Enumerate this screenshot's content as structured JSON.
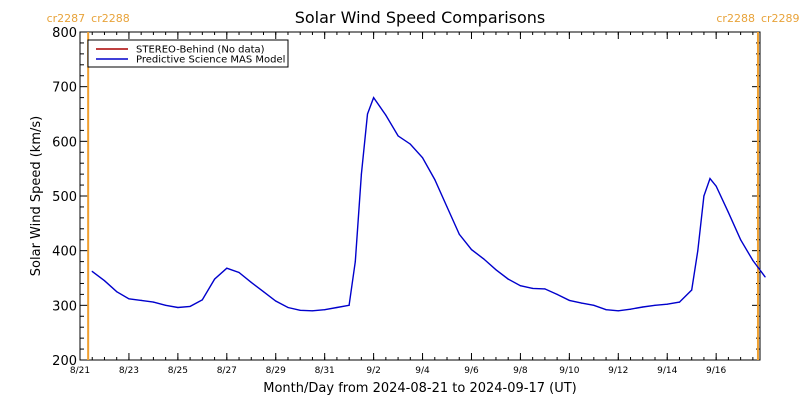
{
  "chart_data": {
    "type": "line",
    "title": "Solar Wind Speed Comparisons",
    "xlabel": "Month/Day from 2024-08-21 to 2024-09-17 (UT)",
    "ylabel": "Solar Wind Speed (km/s)",
    "ylim": [
      200,
      800
    ],
    "y_ticks": [
      200,
      300,
      400,
      500,
      600,
      700,
      800
    ],
    "xlim": [
      "2024-08-21",
      "2024-09-17T19:00"
    ],
    "x_ticks": [
      {
        "date": "2024-08-21",
        "label": "8/21"
      },
      {
        "date": "2024-08-23",
        "label": "8/23"
      },
      {
        "date": "2024-08-25",
        "label": "8/25"
      },
      {
        "date": "2024-08-27",
        "label": "8/27"
      },
      {
        "date": "2024-08-29",
        "label": "8/29"
      },
      {
        "date": "2024-08-31",
        "label": "8/31"
      },
      {
        "date": "2024-09-02",
        "label": "9/2"
      },
      {
        "date": "2024-09-04",
        "label": "9/4"
      },
      {
        "date": "2024-09-06",
        "label": "9/6"
      },
      {
        "date": "2024-09-08",
        "label": "9/8"
      },
      {
        "date": "2024-09-10",
        "label": "9/10"
      },
      {
        "date": "2024-09-12",
        "label": "9/12"
      },
      {
        "date": "2024-09-14",
        "label": "9/14"
      },
      {
        "date": "2024-09-16",
        "label": "9/16"
      }
    ],
    "legend": {
      "position": "top-left",
      "entries": [
        {
          "label": "STEREO-Behind (No data)",
          "color": "#aa0000"
        },
        {
          "label": "Predictive Science MAS Model",
          "color": "#0000cc"
        }
      ]
    },
    "carrington_markers": [
      {
        "date": "2024-08-21T08:00",
        "left_label": "cr2287",
        "right_label": "cr2288",
        "color": "#f0a030"
      },
      {
        "date": "2024-09-17T17:00",
        "left_label": "cr2288",
        "right_label": "cr2289",
        "color": "#f0a030"
      }
    ],
    "series": [
      {
        "name": "STEREO-Behind (No data)",
        "color": "#aa0000",
        "points": []
      },
      {
        "name": "Predictive Science MAS Model",
        "color": "#0000cc",
        "points": [
          [
            "2024-08-21T12:00",
            362
          ],
          [
            "2024-08-22T00:00",
            345
          ],
          [
            "2024-08-22T12:00",
            325
          ],
          [
            "2024-08-23T00:00",
            312
          ],
          [
            "2024-08-23T12:00",
            309
          ],
          [
            "2024-08-24T00:00",
            306
          ],
          [
            "2024-08-24T12:00",
            300
          ],
          [
            "2024-08-25T00:00",
            296
          ],
          [
            "2024-08-25T12:00",
            298
          ],
          [
            "2024-08-26T00:00",
            310
          ],
          [
            "2024-08-26T12:00",
            348
          ],
          [
            "2024-08-27T00:00",
            368
          ],
          [
            "2024-08-27T12:00",
            360
          ],
          [
            "2024-08-28T00:00",
            342
          ],
          [
            "2024-08-28T12:00",
            325
          ],
          [
            "2024-08-29T00:00",
            308
          ],
          [
            "2024-08-29T12:00",
            296
          ],
          [
            "2024-08-30T00:00",
            291
          ],
          [
            "2024-08-30T12:00",
            290
          ],
          [
            "2024-08-31T00:00",
            292
          ],
          [
            "2024-08-31T12:00",
            296
          ],
          [
            "2024-09-01T00:00",
            300
          ],
          [
            "2024-09-01T06:00",
            380
          ],
          [
            "2024-09-01T12:00",
            540
          ],
          [
            "2024-09-01T18:00",
            650
          ],
          [
            "2024-09-02T00:00",
            680
          ],
          [
            "2024-09-02T12:00",
            648
          ],
          [
            "2024-09-03T00:00",
            610
          ],
          [
            "2024-09-03T12:00",
            595
          ],
          [
            "2024-09-04T00:00",
            570
          ],
          [
            "2024-09-04T12:00",
            530
          ],
          [
            "2024-09-05T00:00",
            480
          ],
          [
            "2024-09-05T12:00",
            430
          ],
          [
            "2024-09-06T00:00",
            402
          ],
          [
            "2024-09-06T12:00",
            385
          ],
          [
            "2024-09-07T00:00",
            365
          ],
          [
            "2024-09-07T12:00",
            348
          ],
          [
            "2024-09-08T00:00",
            336
          ],
          [
            "2024-09-08T12:00",
            331
          ],
          [
            "2024-09-09T00:00",
            330
          ],
          [
            "2024-09-09T12:00",
            320
          ],
          [
            "2024-09-10T00:00",
            309
          ],
          [
            "2024-09-10T12:00",
            304
          ],
          [
            "2024-09-11T00:00",
            300
          ],
          [
            "2024-09-11T12:00",
            292
          ],
          [
            "2024-09-12T00:00",
            290
          ],
          [
            "2024-09-12T12:00",
            293
          ],
          [
            "2024-09-13T00:00",
            297
          ],
          [
            "2024-09-13T12:00",
            300
          ],
          [
            "2024-09-14T00:00",
            302
          ],
          [
            "2024-09-14T12:00",
            306
          ],
          [
            "2024-09-15T00:00",
            328
          ],
          [
            "2024-09-15T06:00",
            400
          ],
          [
            "2024-09-15T12:00",
            500
          ],
          [
            "2024-09-15T18:00",
            532
          ],
          [
            "2024-09-16T00:00",
            518
          ],
          [
            "2024-09-16T12:00",
            470
          ],
          [
            "2024-09-17T00:00",
            420
          ],
          [
            "2024-09-17T12:00",
            382
          ],
          [
            "2024-09-18T00:00",
            352
          ]
        ]
      }
    ]
  }
}
